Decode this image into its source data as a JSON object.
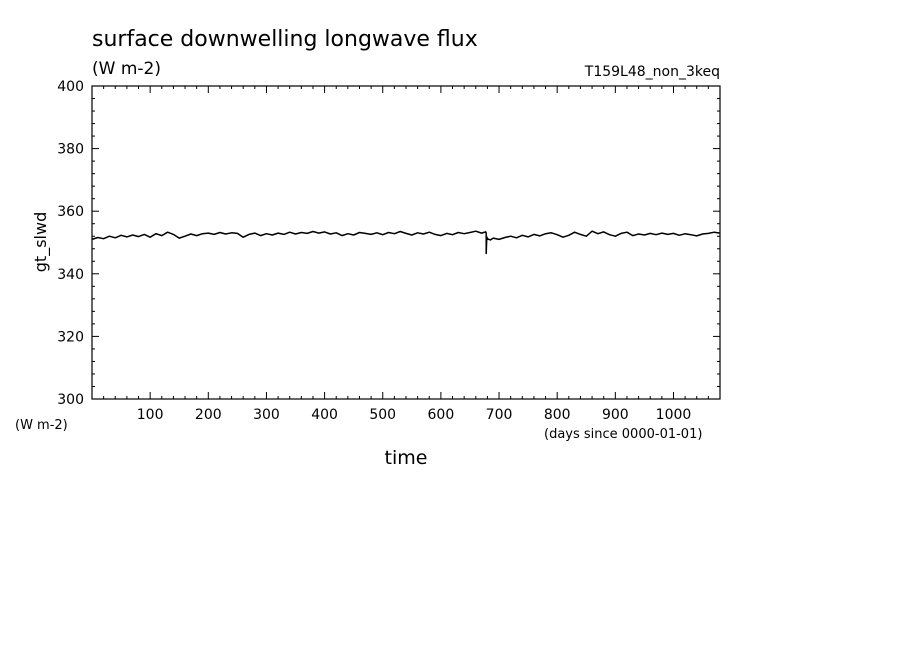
{
  "chart_data": {
    "type": "line",
    "title": "surface downwelling longwave flux",
    "subtitle": "(W m-2)",
    "run_label": "T159L48_non_3keq",
    "xlabel": "time",
    "x_units": "(days since 0000-01-01)",
    "ylabel": "gt_slwd",
    "y_units": "(W m-2)",
    "xlim": [
      0,
      1080
    ],
    "ylim": [
      300,
      400
    ],
    "x_ticks": [
      100,
      200,
      300,
      400,
      500,
      600,
      700,
      800,
      900,
      1000
    ],
    "x_tick_labels": [
      "100",
      "200",
      "300",
      "400",
      "500",
      "600",
      "700",
      "800",
      "900",
      "1000"
    ],
    "y_ticks": [
      300,
      320,
      340,
      360,
      380,
      400
    ],
    "y_tick_labels": [
      "300",
      "320",
      "340",
      "360",
      "380",
      "400"
    ],
    "grid": false,
    "line_color": "#000000",
    "series": [
      {
        "x": [
          0,
          10,
          20,
          30,
          40,
          50,
          60,
          70,
          80,
          90,
          100,
          110,
          120,
          130,
          140,
          150,
          160,
          170,
          180,
          190,
          200,
          210,
          220,
          230,
          240,
          250,
          260,
          270,
          280,
          290,
          300,
          310,
          320,
          330,
          340,
          350,
          360,
          370,
          380,
          390,
          400,
          410,
          420,
          430,
          440,
          450,
          460,
          470,
          480,
          490,
          500,
          510,
          520,
          530,
          540,
          550,
          560,
          570,
          580,
          590,
          600,
          610,
          620,
          630,
          640,
          650,
          660,
          670,
          677,
          678,
          678,
          679,
          680,
          685,
          690,
          700,
          710,
          720,
          730,
          740,
          750,
          760,
          770,
          780,
          790,
          800,
          810,
          820,
          830,
          840,
          850,
          860,
          870,
          880,
          890,
          900,
          910,
          920,
          930,
          940,
          950,
          960,
          970,
          980,
          990,
          1000,
          1010,
          1020,
          1030,
          1040,
          1050,
          1060,
          1070,
          1080
        ],
        "y": [
          351.0,
          351.6,
          351.2,
          352.0,
          351.5,
          352.3,
          351.8,
          352.4,
          351.9,
          352.6,
          351.7,
          352.8,
          352.2,
          353.3,
          352.6,
          351.4,
          352.0,
          352.7,
          352.2,
          352.8,
          353.0,
          352.6,
          353.2,
          352.7,
          353.1,
          352.9,
          351.7,
          352.6,
          353.0,
          352.2,
          352.8,
          352.4,
          353.0,
          352.6,
          353.3,
          352.7,
          353.2,
          352.9,
          353.5,
          353.0,
          353.4,
          352.7,
          353.1,
          352.2,
          352.8,
          352.4,
          353.2,
          352.9,
          352.6,
          353.1,
          352.5,
          353.2,
          352.8,
          353.5,
          352.9,
          352.4,
          353.1,
          352.7,
          353.3,
          352.6,
          352.2,
          352.9,
          352.5,
          353.2,
          352.8,
          353.2,
          353.6,
          353.0,
          353.4,
          353.0,
          346.5,
          351.8,
          351.2,
          350.8,
          351.4,
          351.0,
          351.6,
          352.0,
          351.5,
          352.3,
          351.8,
          352.6,
          352.1,
          352.8,
          353.1,
          352.5,
          351.7,
          352.3,
          353.3,
          352.6,
          352.0,
          353.6,
          352.8,
          353.4,
          352.5,
          352.0,
          352.9,
          353.3,
          352.2,
          352.7,
          352.4,
          352.9,
          352.5,
          353.0,
          352.6,
          352.9,
          352.3,
          352.8,
          352.5,
          352.1,
          352.7,
          352.9,
          353.3,
          353.0
        ]
      }
    ]
  }
}
